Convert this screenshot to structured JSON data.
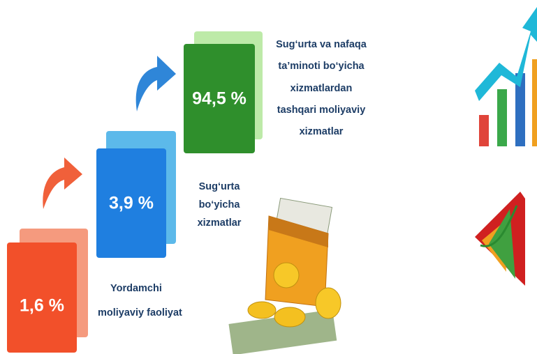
{
  "steps": [
    {
      "value": "1,6 %",
      "label": [
        "Yordamchi",
        "moliyaviy faoliyat"
      ]
    },
    {
      "value": "3,9 %",
      "label": [
        "Sug‘urta",
        "bo‘yicha",
        "xizmatlar"
      ]
    },
    {
      "value": "94,5 %",
      "label": [
        "Sug‘urta va nafaqa",
        "ta’minoti bo‘yicha",
        "xizmatlardan",
        "tashqari moliyaviy",
        "xizmatlar"
      ]
    }
  ]
}
